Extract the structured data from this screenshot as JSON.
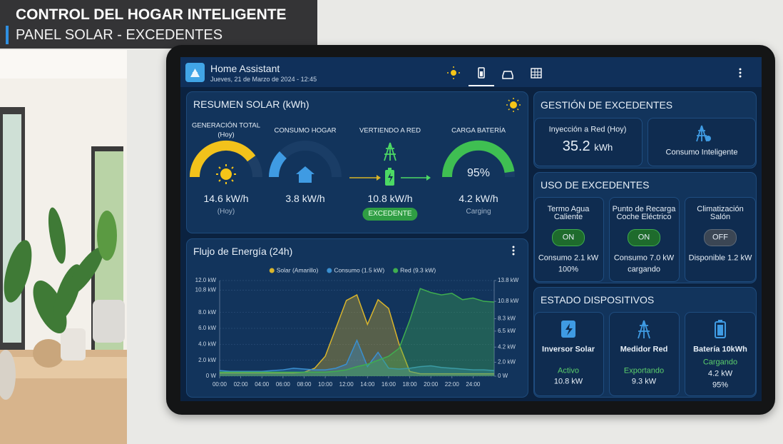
{
  "banner": {
    "title": "CONTROL DEL HOGAR INTELIGENTE",
    "subtitle": "PANEL SOLAR - EXCEDENTES"
  },
  "app": {
    "name": "Home Assistant",
    "datetime": "Jueves, 21 de Marzo de 2024 - 12:45"
  },
  "summary": {
    "title": "RESUMEN SOLAR (kWh)",
    "generation": {
      "label": "GENERACIÓN TOTAL",
      "label2": "(Hoy)",
      "value": "14.6 kW/h",
      "note": "(Hoy)"
    },
    "consumption": {
      "label": "CONSUMO HOGAR",
      "value": "3.8 kW/h"
    },
    "export": {
      "label": "VERTIENDO A RED",
      "value": "10.8 kW/h",
      "badge": "EXCEDENTE"
    },
    "battery": {
      "label": "CARGA BATERÍA",
      "percent": "95%",
      "value": "4.2 kW/h",
      "note": "Carging"
    }
  },
  "surplus_management": {
    "title": "GESTIÓN DE EXCEDENTES",
    "injection_label": "Inyección a Red (Hoy)",
    "injection_value": "35.2",
    "injection_unit": "kWh",
    "smart": "Consumo Inteligente"
  },
  "surplus_usage": {
    "title": "USO DE EXCEDENTES",
    "items": [
      {
        "name": "Termo Agua Caliente",
        "state": "ON",
        "line1": "Consumo 2.1 kW",
        "line2": "100%"
      },
      {
        "name": "Punto de Recarga Coche Eléctrico",
        "state": "ON",
        "line1": "Consumo 7.0 kW",
        "line2": "cargando"
      },
      {
        "name": "Climatización Salón",
        "state": "OFF",
        "line1": "Disponible 1.2 kW"
      }
    ]
  },
  "device_status": {
    "title": "ESTADO DISPOSITIVOS",
    "items": [
      {
        "name": "Inversor Solar",
        "status": "Activo",
        "value": "10.8 kW"
      },
      {
        "name": "Medidor Red",
        "status": "Exportando",
        "value": "9.3 kW"
      },
      {
        "name": "Batería 10kWh",
        "status": "Cargando",
        "value": "4.2 kW",
        "extra": "95%"
      }
    ]
  },
  "chart_data": {
    "type": "area",
    "title": "Flujo de Energía (24h)",
    "legend": "top",
    "grid": true,
    "x": [
      0,
      1,
      2,
      3,
      4,
      5,
      6,
      7,
      8,
      9,
      10,
      11,
      12,
      13,
      14,
      15,
      16,
      17,
      18,
      19,
      20,
      21,
      22,
      23,
      24,
      25,
      26
    ],
    "xlim": [
      0,
      26
    ],
    "xticks": [
      {
        "value": 0,
        "label": "00:00"
      },
      {
        "value": 2,
        "label": "02:00"
      },
      {
        "value": 4,
        "label": "04:00"
      },
      {
        "value": 6,
        "label": "06:00"
      },
      {
        "value": 8,
        "label": "08:00"
      },
      {
        "value": 10,
        "label": "10:00"
      },
      {
        "value": 12,
        "label": "12:00"
      },
      {
        "value": 14,
        "label": "14:00"
      },
      {
        "value": 16,
        "label": "16:00"
      },
      {
        "value": 18,
        "label": "18:00"
      },
      {
        "value": 20,
        "label": "20:00"
      },
      {
        "value": 22,
        "label": "22:00"
      },
      {
        "value": 24,
        "label": "24:00"
      }
    ],
    "ylim": [
      0,
      12
    ],
    "yticks": [
      {
        "value": 0,
        "label": "0 W"
      },
      {
        "value": 2,
        "label": "2.0 kW"
      },
      {
        "value": 4,
        "label": "4.0 kW"
      },
      {
        "value": 6,
        "label": "6.0 kW"
      },
      {
        "value": 8,
        "label": "8.0 kW"
      },
      {
        "value": 10.8,
        "label": "10.8 kW"
      },
      {
        "value": 12,
        "label": "12.0 kW"
      }
    ],
    "y2lim": [
      0,
      13.8
    ],
    "y2ticks": [
      {
        "value": 0,
        "label": "0 W"
      },
      {
        "value": 2,
        "label": "2.0 kW"
      },
      {
        "value": 4.2,
        "label": "4.2 kW"
      },
      {
        "value": 6.5,
        "label": "6.5 kW"
      },
      {
        "value": 8.3,
        "label": "8.3 kW"
      },
      {
        "value": 10.8,
        "label": "10.8 kW"
      },
      {
        "value": 13.8,
        "label": "13.8 kW"
      }
    ],
    "series": [
      {
        "name": "Solar (Amarillo)",
        "color": "#d9b52c",
        "values": [
          0.4,
          0.4,
          0.4,
          0.4,
          0.4,
          0.4,
          0.4,
          0.4,
          0.5,
          1.0,
          2.5,
          6.0,
          9.5,
          10.2,
          6.5,
          9.6,
          8.5,
          4.0,
          0.6,
          0.3,
          0.3,
          0.3,
          0.3,
          0.3,
          0.3,
          0.3,
          0.3
        ]
      },
      {
        "name": "Consumo (1.5 kW)",
        "color": "#3a8fd0",
        "values": [
          0.7,
          0.6,
          0.6,
          0.6,
          0.6,
          0.7,
          0.8,
          1.0,
          0.9,
          0.8,
          0.8,
          1.0,
          1.5,
          4.5,
          1.2,
          3.0,
          1.0,
          0.9,
          1.0,
          1.2,
          1.3,
          1.1,
          1.0,
          0.9,
          0.8,
          0.8,
          0.7
        ]
      },
      {
        "name": "Red (9.3 kW)",
        "color": "#3fae4f",
        "values": [
          0.5,
          0.5,
          0.5,
          0.5,
          0.5,
          0.5,
          0.5,
          0.5,
          0.5,
          0.5,
          0.5,
          0.6,
          0.8,
          1.2,
          1.5,
          2.0,
          2.5,
          3.5,
          7.0,
          11.0,
          10.5,
          10.2,
          10.4,
          9.6,
          9.8,
          9.4,
          9.3
        ]
      }
    ]
  }
}
